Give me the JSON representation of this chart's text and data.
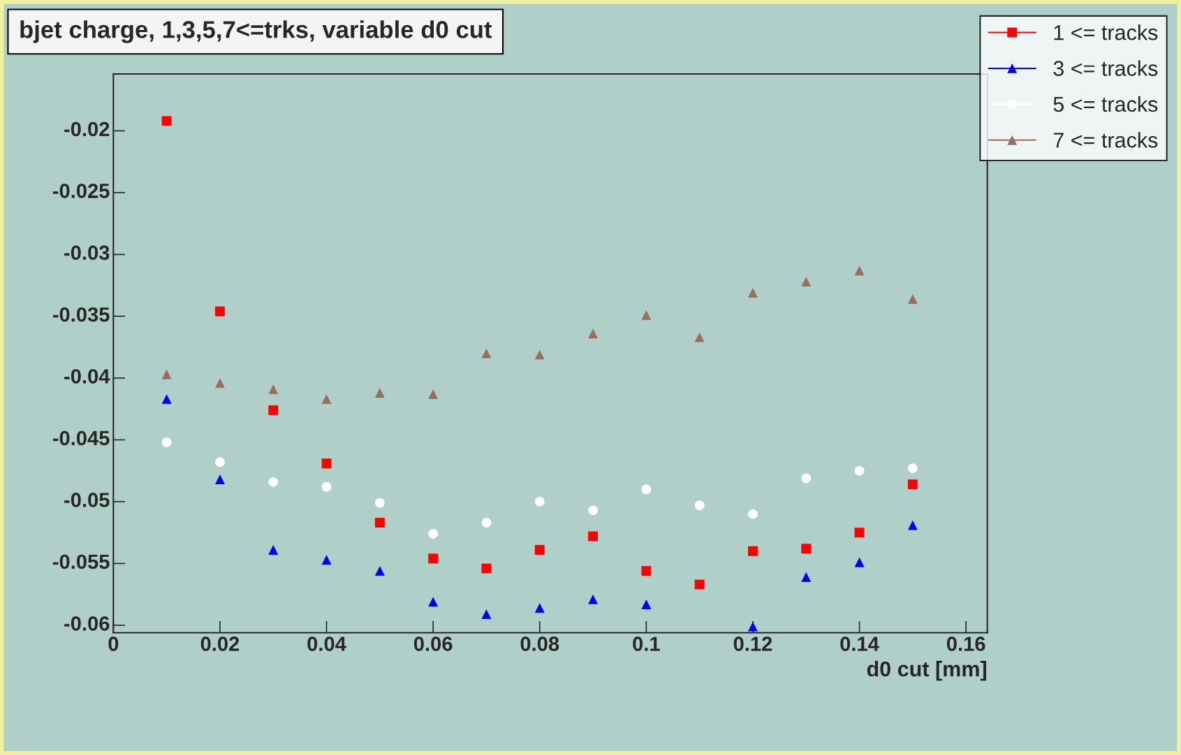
{
  "chart_data": {
    "type": "scatter",
    "title": "bjet charge, 1,3,5,7<=trks, variable d0 cut",
    "xlabel": "d0 cut [mm]",
    "x": [
      0.01,
      0.02,
      0.03,
      0.04,
      0.05,
      0.06,
      0.07,
      0.08,
      0.09,
      0.1,
      0.11,
      0.12,
      0.13,
      0.14,
      0.15
    ],
    "series": [
      {
        "name": "1 <= tracks",
        "color": "#ff0000",
        "marker": "square",
        "values": [
          -0.0192,
          -0.0346,
          -0.0426,
          -0.0469,
          -0.0517,
          -0.0546,
          -0.0554,
          -0.0539,
          -0.0528,
          -0.0556,
          -0.0567,
          -0.054,
          -0.0538,
          -0.0525,
          -0.0486
        ]
      },
      {
        "name": "3 <= tracks",
        "color": "#0000ff",
        "marker": "triangle",
        "values": [
          -0.0417,
          -0.0482,
          -0.0539,
          -0.0547,
          -0.0556,
          -0.0581,
          -0.0591,
          -0.0586,
          -0.0579,
          -0.0583,
          null,
          -0.0601,
          -0.0561,
          -0.0549,
          -0.0519
        ]
      },
      {
        "name": "5 <= tracks",
        "color": "#ffffff",
        "marker": "circle",
        "values": [
          -0.0452,
          -0.0468,
          -0.0484,
          -0.0488,
          -0.0501,
          -0.0526,
          -0.0517,
          -0.05,
          -0.0507,
          -0.049,
          -0.0503,
          -0.051,
          -0.0481,
          -0.0475,
          -0.0473
        ]
      },
      {
        "name": "7 <= tracks",
        "color": "#9a6e5e",
        "marker": "triangle",
        "values": [
          -0.0397,
          -0.0404,
          -0.0409,
          -0.0417,
          -0.0412,
          -0.0413,
          -0.038,
          -0.0381,
          -0.0364,
          -0.0349,
          -0.0367,
          -0.0331,
          -0.0322,
          -0.0313,
          -0.0336
        ]
      }
    ],
    "xlim": [
      0,
      0.164
    ],
    "ylim": [
      -0.0606,
      -0.0154
    ],
    "xticks": [
      0,
      0.02,
      0.04,
      0.06,
      0.08,
      0.1,
      0.12,
      0.14,
      0.16
    ],
    "yticks": [
      -0.06,
      -0.055,
      -0.05,
      -0.045,
      -0.04,
      -0.035,
      -0.03,
      -0.025,
      -0.02
    ],
    "grid": false,
    "legend": "top right"
  }
}
